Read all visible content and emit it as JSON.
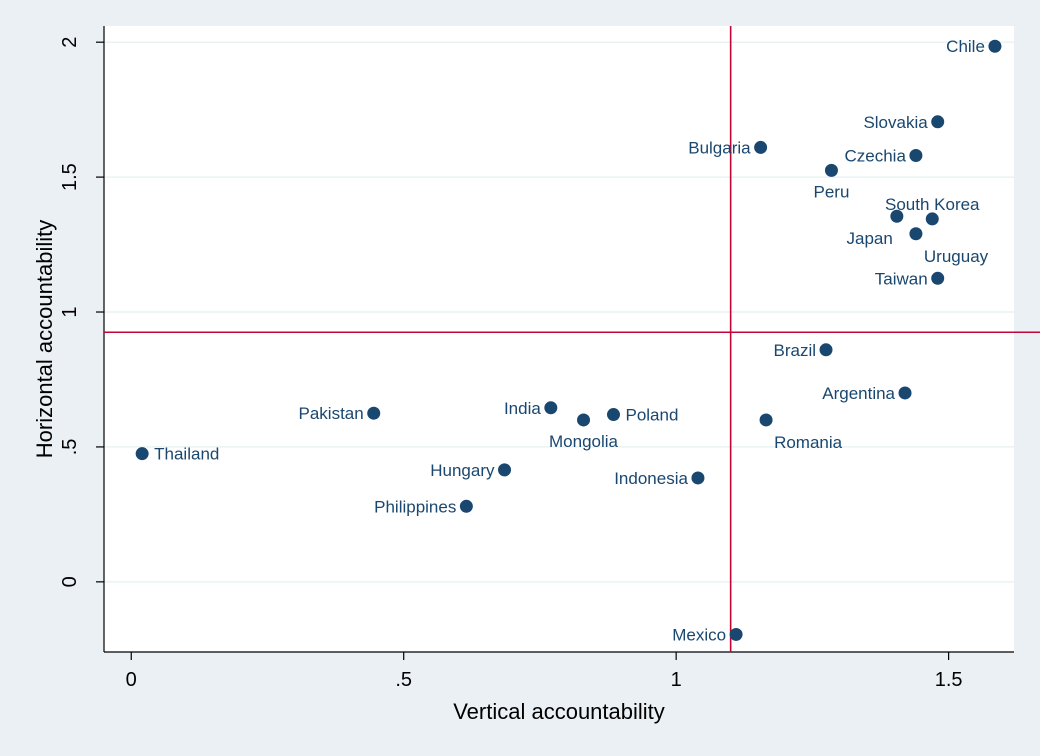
{
  "chart_data": {
    "type": "scatter",
    "xlabel": "Vertical accountability",
    "ylabel": "Horizontal accountability",
    "xlim": [
      -0.05,
      1.62
    ],
    "ylim": [
      -0.26,
      2.06
    ],
    "xticks": [
      0,
      0.5,
      1,
      1.5
    ],
    "xtick_labels": [
      "0",
      ".5",
      "1",
      "1.5"
    ],
    "yticks": [
      0,
      0.5,
      1,
      1.5,
      2
    ],
    "ytick_labels": [
      "0",
      ".5",
      "1",
      "1.5",
      "2"
    ],
    "grid": "horizontal",
    "point_color": "#1a476f",
    "reference_line_color": "#c10534",
    "reference_lines": {
      "x": 1.1,
      "y": 0.925
    },
    "points": [
      {
        "label": "Chile",
        "x": 1.585,
        "y": 1.985,
        "pos": "left"
      },
      {
        "label": "Slovakia",
        "x": 1.48,
        "y": 1.705,
        "pos": "left"
      },
      {
        "label": "Bulgaria",
        "x": 1.155,
        "y": 1.61,
        "pos": "left"
      },
      {
        "label": "Czechia",
        "x": 1.44,
        "y": 1.58,
        "pos": "left"
      },
      {
        "label": "Peru",
        "x": 1.285,
        "y": 1.525,
        "pos": "below"
      },
      {
        "label": "South Korea",
        "x": 1.47,
        "y": 1.345,
        "pos": "above"
      },
      {
        "label": "Japan",
        "x": 1.405,
        "y": 1.355,
        "pos": "below-left"
      },
      {
        "label": "Uruguay",
        "x": 1.44,
        "y": 1.29,
        "pos": "below-right"
      },
      {
        "label": "Taiwan",
        "x": 1.48,
        "y": 1.125,
        "pos": "left"
      },
      {
        "label": "Brazil",
        "x": 1.275,
        "y": 0.86,
        "pos": "left"
      },
      {
        "label": "Argentina",
        "x": 1.42,
        "y": 0.7,
        "pos": "left"
      },
      {
        "label": "Pakistan",
        "x": 0.445,
        "y": 0.625,
        "pos": "left"
      },
      {
        "label": "India",
        "x": 0.77,
        "y": 0.645,
        "pos": "left"
      },
      {
        "label": "Poland",
        "x": 0.885,
        "y": 0.62,
        "pos": "right"
      },
      {
        "label": "Mongolia",
        "x": 0.83,
        "y": 0.6,
        "pos": "below"
      },
      {
        "label": "Romania",
        "x": 1.165,
        "y": 0.6,
        "pos": "below-right"
      },
      {
        "label": "Thailand",
        "x": 0.02,
        "y": 0.475,
        "pos": "right"
      },
      {
        "label": "Hungary",
        "x": 0.685,
        "y": 0.415,
        "pos": "left"
      },
      {
        "label": "Indonesia",
        "x": 1.04,
        "y": 0.385,
        "pos": "left"
      },
      {
        "label": "Philippines",
        "x": 0.615,
        "y": 0.28,
        "pos": "left"
      },
      {
        "label": "Mexico",
        "x": 1.11,
        "y": -0.195,
        "pos": "left"
      }
    ]
  }
}
